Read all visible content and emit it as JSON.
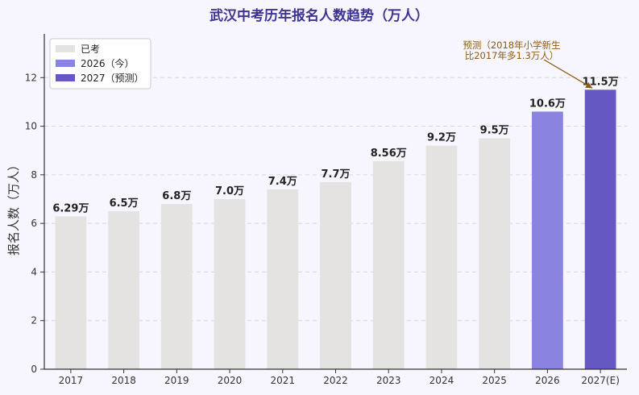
{
  "chart_data": {
    "type": "bar",
    "title": "武汉中考历年报名人数趋势（万人）",
    "xlabel": "",
    "ylabel": "报名人数（万人）",
    "ylim": [
      0,
      13.8
    ],
    "yticks": [
      0,
      2,
      4,
      6,
      8,
      10,
      12
    ],
    "grid": true,
    "legend_position": "top-left",
    "categories": [
      "2017",
      "2018",
      "2019",
      "2020",
      "2021",
      "2022",
      "2023",
      "2024",
      "2025",
      "2026",
      "2027(E)"
    ],
    "values": [
      6.29,
      6.5,
      6.8,
      7.0,
      7.4,
      7.7,
      8.56,
      9.2,
      9.5,
      10.6,
      11.5
    ],
    "value_labels": [
      "6.29万",
      "6.5万",
      "6.8万",
      "7.0万",
      "7.4万",
      "7.7万",
      "8.56万",
      "9.2万",
      "9.5万",
      "10.6万",
      "11.5万"
    ],
    "bar_groups": [
      "past",
      "past",
      "past",
      "past",
      "past",
      "past",
      "past",
      "past",
      "past",
      "current",
      "forecast"
    ],
    "legend": [
      {
        "key": "past",
        "label": "已考"
      },
      {
        "key": "current",
        "label": "2026（今）"
      },
      {
        "key": "forecast",
        "label": "2027（预测）"
      }
    ],
    "colors": {
      "past": "#e4e3e1",
      "current": "#8a83e0",
      "forecast": "#6558c2",
      "title": "#3d3590",
      "annotation": "#8b5a1a",
      "grid": "#d9d6ea",
      "axis": "#333333"
    },
    "annotation": {
      "lines": [
        "预测（2018年小学新生",
        "比2017年多1.3万人）"
      ],
      "target_category": "2027(E)"
    }
  }
}
